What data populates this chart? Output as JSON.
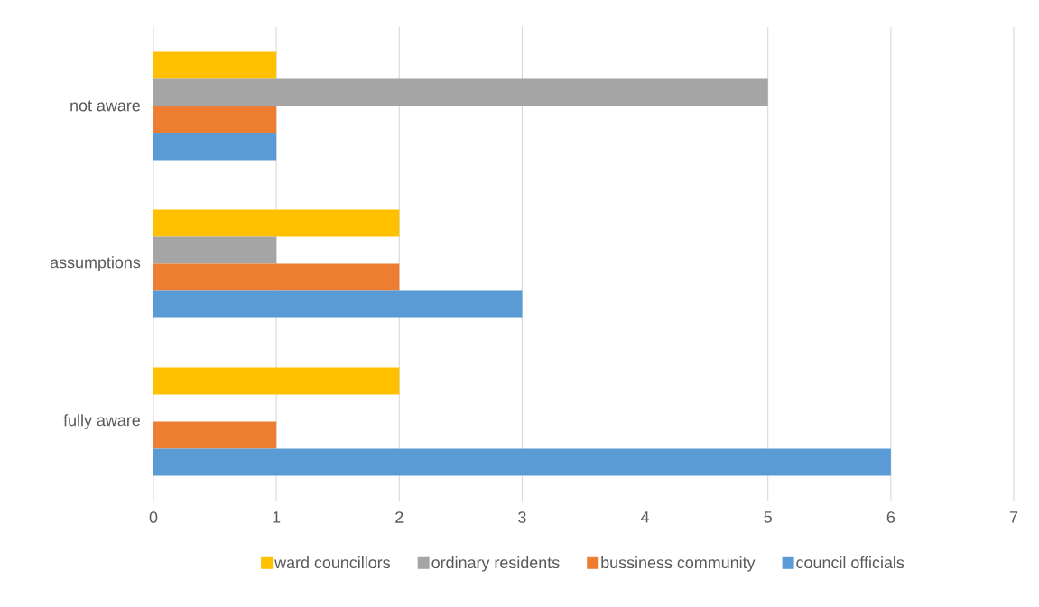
{
  "chart_data": {
    "type": "bar",
    "orientation": "horizontal",
    "categories": [
      "not aware",
      "assumptions",
      "fully aware"
    ],
    "series": [
      {
        "name": "ward councillors",
        "color": "#ffc000",
        "values": [
          1,
          2,
          2
        ]
      },
      {
        "name": "ordinary residents",
        "color": "#a5a5a5",
        "values": [
          5,
          1,
          0
        ]
      },
      {
        "name": "bussiness community",
        "color": "#ed7d31",
        "values": [
          1,
          2,
          1
        ]
      },
      {
        "name": "council officials",
        "color": "#5b9bd5",
        "values": [
          1,
          3,
          6
        ]
      }
    ],
    "xlim": [
      0,
      7
    ],
    "xticks": [
      0,
      1,
      2,
      3,
      4,
      5,
      6,
      7
    ],
    "grid": "x",
    "legend": "bottom"
  }
}
